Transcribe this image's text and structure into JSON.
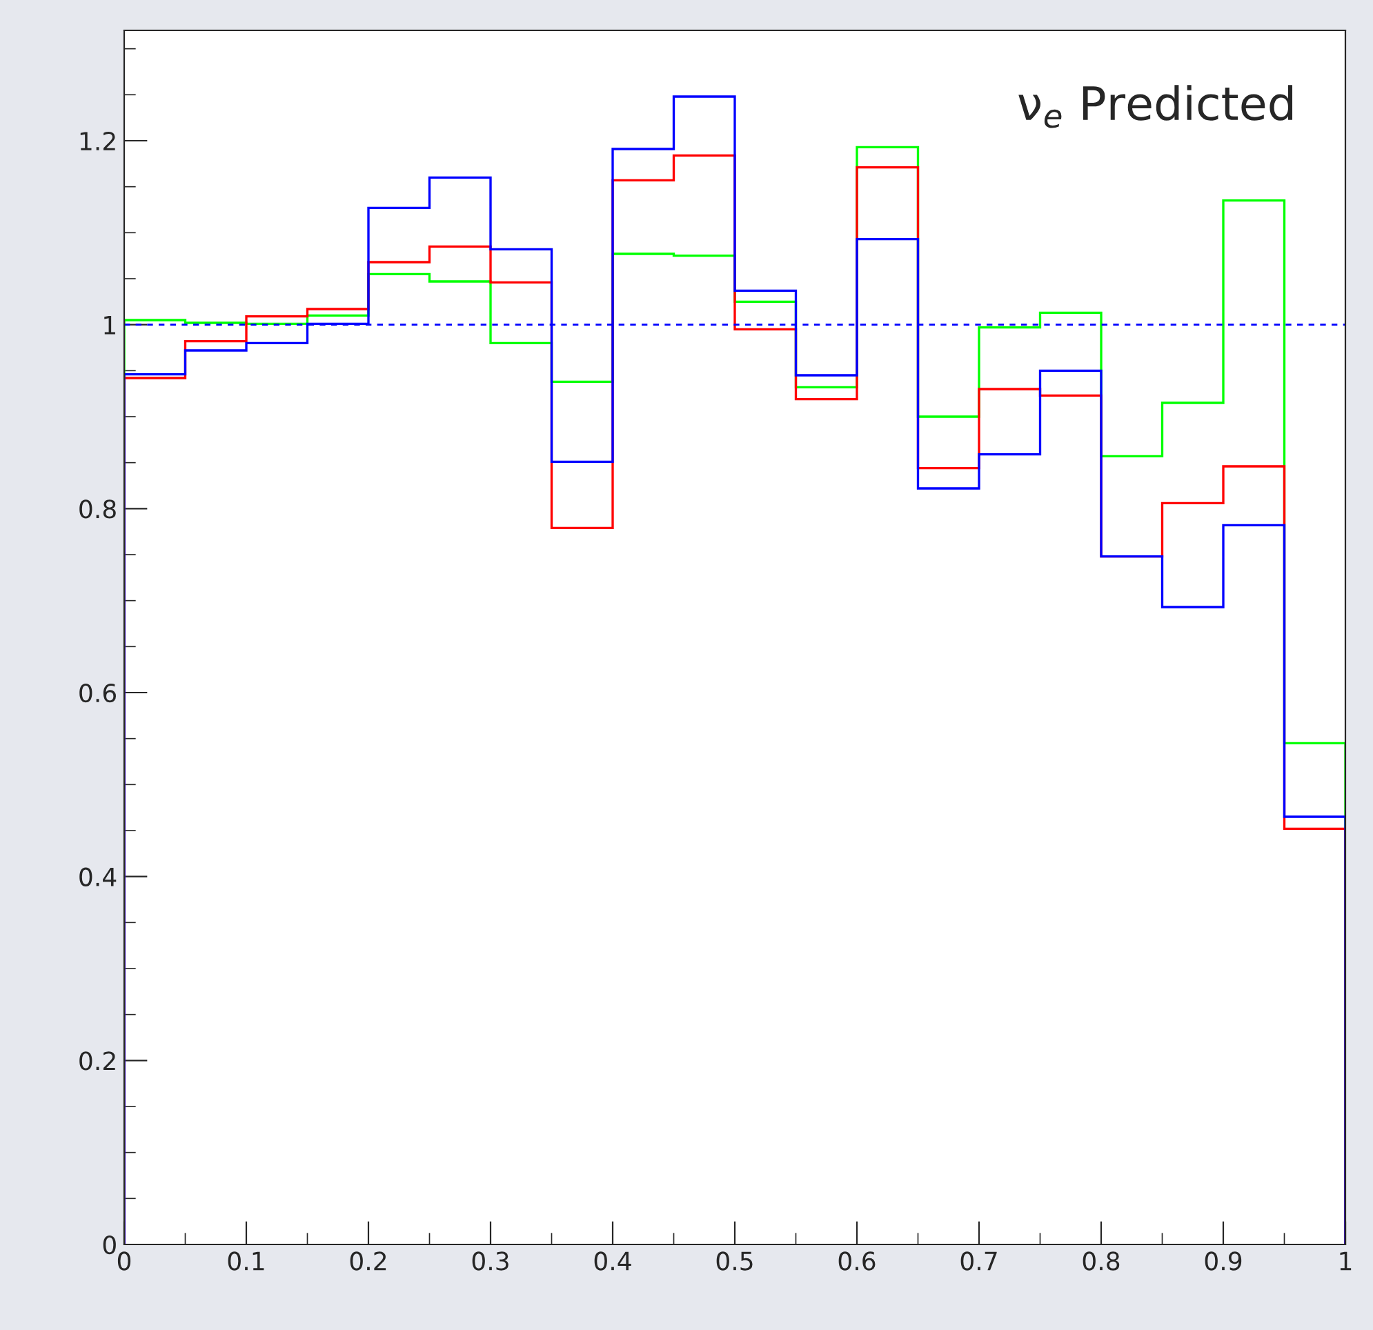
{
  "chart_data": {
    "type": "histogram",
    "bins": [
      0,
      0.05,
      0.1,
      0.15,
      0.2,
      0.25,
      0.3,
      0.35,
      0.4,
      0.45,
      0.5,
      0.55,
      0.6,
      0.65,
      0.7,
      0.75,
      0.8,
      0.85,
      0.9,
      0.95,
      1
    ],
    "series": [
      {
        "color": "#00ff00",
        "values": [
          1.005,
          1.002,
          1.001,
          1.01,
          1.055,
          1.047,
          0.98,
          0.938,
          1.077,
          1.075,
          1.025,
          0.932,
          1.193,
          0.9,
          0.997,
          1.013,
          0.857,
          0.915,
          1.135,
          0.545
        ]
      },
      {
        "color": "#ff0000",
        "values": [
          0.942,
          0.982,
          1.009,
          1.017,
          1.068,
          1.085,
          1.046,
          0.779,
          1.157,
          1.184,
          0.995,
          0.919,
          1.171,
          0.844,
          0.93,
          0.923,
          0.748,
          0.806,
          0.846,
          0.452
        ]
      },
      {
        "color": "#0000ff",
        "values": [
          0.946,
          0.972,
          0.98,
          1.001,
          1.127,
          1.16,
          1.082,
          0.851,
          1.191,
          1.248,
          1.037,
          0.945,
          1.093,
          0.822,
          0.859,
          0.95,
          0.748,
          0.693,
          0.782,
          0.465
        ]
      }
    ],
    "xlim": [
      0,
      1
    ],
    "xticks": [
      0,
      0.1,
      0.2,
      0.3,
      0.4,
      0.5,
      0.6,
      0.7,
      0.8,
      0.9,
      1
    ],
    "ylim": [
      0,
      1.32
    ],
    "yticks": [
      0,
      0.2,
      0.4,
      0.6,
      0.8,
      1,
      1.2
    ],
    "ref_lines": [
      {
        "axis": "y",
        "value": 1,
        "color": "#0000ff",
        "line_style": "dotted"
      }
    ],
    "annotations": [
      "ν$_{e}$ Predicted"
    ],
    "grid": false,
    "legend": false
  }
}
